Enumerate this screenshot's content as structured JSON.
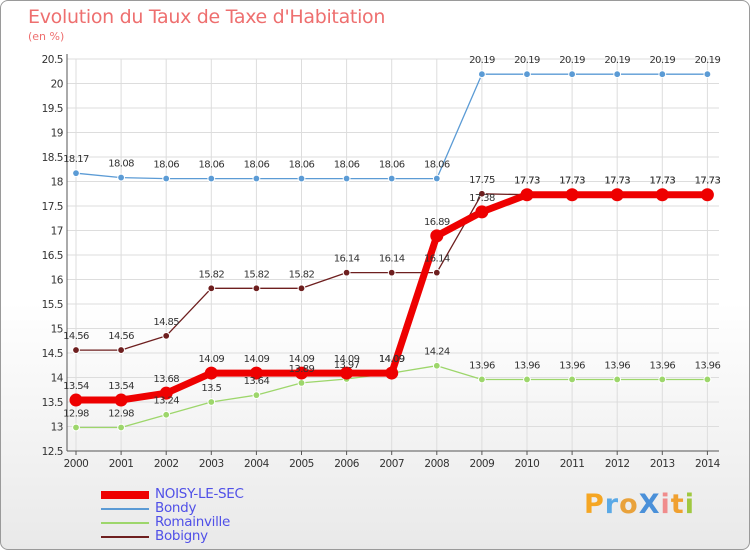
{
  "title": "Evolution du Taux de Taxe d'Habitation",
  "subtitle": "(en %)",
  "logo": {
    "text": "ProXiti",
    "letter_colors": [
      "#f5a623",
      "#5aa9e6",
      "#e9a23b",
      "#4a90d9",
      "#f08c8c",
      "#f0a030",
      "#a0c840"
    ]
  },
  "chart_data": {
    "type": "line",
    "title": "Evolution du Taux de Taxe d'Habitation",
    "ylabel": "(en %)",
    "xlabel": "",
    "x": [
      "2000",
      "2001",
      "2002",
      "2003",
      "2004",
      "2005",
      "2006",
      "2007",
      "2008",
      "2009",
      "2010",
      "2011",
      "2012",
      "2013",
      "2014"
    ],
    "ylim": [
      12.5,
      20.5
    ],
    "yticks": [
      "12.5",
      "13",
      "13.5",
      "14",
      "14.5",
      "15",
      "15.5",
      "16",
      "16.5",
      "17",
      "17.5",
      "18",
      "18.5",
      "19",
      "19.5",
      "20",
      "20.5"
    ],
    "grid": true,
    "legend_position": "bottom-left",
    "series": [
      {
        "name": "Bobigny",
        "color": "#6e1f1f",
        "values": [
          14.56,
          14.56,
          14.85,
          15.82,
          15.82,
          15.82,
          16.14,
          16.14,
          16.14,
          17.75,
          17.73,
          17.73,
          17.73,
          17.73,
          17.73
        ],
        "labels": [
          "14.56",
          "14.56",
          "14.85",
          "15.82",
          "15.82",
          "15.82",
          "16.14",
          "16.14",
          "16.14",
          "17.75",
          "17.73",
          "17.73",
          "17.73",
          "17.73",
          "17.73"
        ]
      },
      {
        "name": "Romainville",
        "color": "#9dd66b",
        "values": [
          12.98,
          12.98,
          13.24,
          13.5,
          13.64,
          13.89,
          13.97,
          14.09,
          14.24,
          13.96,
          13.96,
          13.96,
          13.96,
          13.96,
          13.96
        ],
        "labels": [
          "12.98",
          "12.98",
          "13.24",
          "13.5",
          "13.64",
          "13.89",
          "13.97",
          "14.09",
          "14.24",
          "13.96",
          "13.96",
          "13.96",
          "13.96",
          "13.96",
          "13.96"
        ]
      },
      {
        "name": "Bondy",
        "color": "#5b9bd5",
        "values": [
          18.17,
          18.08,
          18.06,
          18.06,
          18.06,
          18.06,
          18.06,
          18.06,
          18.06,
          20.19,
          20.19,
          20.19,
          20.19,
          20.19,
          20.19
        ],
        "labels": [
          "18.17",
          "18.08",
          "18.06",
          "18.06",
          "18.06",
          "18.06",
          "18.06",
          "18.06",
          "18.06",
          "20.19",
          "20.19",
          "20.19",
          "20.19",
          "20.19",
          "20.19"
        ]
      },
      {
        "name": "NOISY-LE-SEC",
        "color": "#ee0000",
        "values": [
          13.54,
          13.54,
          13.68,
          14.09,
          14.09,
          14.09,
          14.09,
          14.09,
          16.89,
          17.38,
          17.73,
          17.73,
          17.73,
          17.73,
          17.73
        ],
        "labels": [
          "13.54",
          "13.54",
          "13.68",
          "14.09",
          "14.09",
          "14.09",
          "14.09",
          "14.09",
          "16.89",
          "17.38",
          "17.73",
          "17.73",
          "17.73",
          "17.73",
          "17.73"
        ]
      }
    ],
    "legend": [
      "NOISY-LE-SEC",
      "Bondy",
      "Romainville",
      "Bobigny"
    ]
  }
}
